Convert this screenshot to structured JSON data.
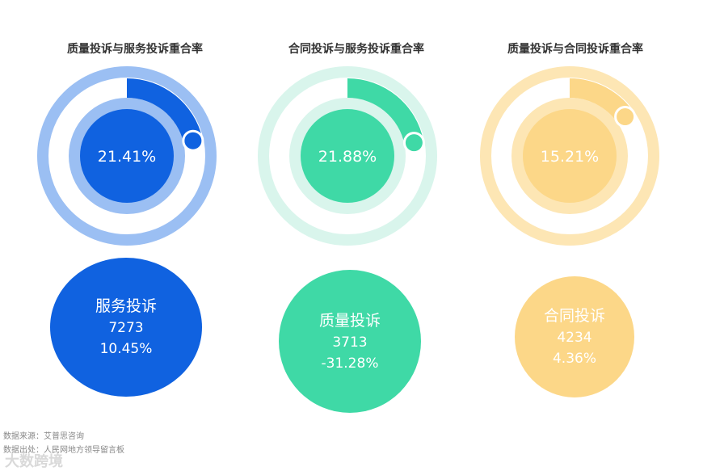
{
  "chart_data": [
    {
      "type": "pie",
      "title": "质量投诉与服务投诉重合率",
      "value_label": "21.41%",
      "value": 21.41,
      "colors": {
        "outer": "#9bbff3",
        "inner": "#9bbff3",
        "core": "#1062e0",
        "arc": "#1062e0",
        "dot": "#1062e0",
        "text": "#ffffff"
      }
    },
    {
      "type": "pie",
      "title": "合同投诉与服务投诉重合率",
      "value_label": "21.88%",
      "value": 21.88,
      "colors": {
        "outer": "#d9f5ec",
        "inner": "#d9f5ec",
        "core": "#3fd9a6",
        "arc": "#3fd9a6",
        "dot": "#3fd9a6",
        "text": "#ffffff"
      }
    },
    {
      "type": "pie",
      "title": "质量投诉与合同投诉重合率",
      "value_label": "15.21%",
      "value": 15.21,
      "colors": {
        "outer": "#fde6b4",
        "inner": "#fde6b4",
        "core": "#fcd788",
        "arc": "#fcd788",
        "dot": "#fcd788",
        "text": "#ffffff"
      }
    },
    {
      "type": "bubble",
      "categories": [
        "服务投诉",
        "质量投诉",
        "合同投诉"
      ],
      "values": [
        7273,
        3713,
        4234
      ],
      "labels": [
        "7273",
        "3713",
        "4234"
      ],
      "change_labels": [
        "10.45%",
        "-31.28%",
        "4.36%"
      ],
      "colors": [
        "#1062e0",
        "#3fd9a6",
        "#fcd788"
      ]
    }
  ],
  "footer": {
    "source": "数据来源：艾普思咨询",
    "origin": "数据出处：人民网地方领导留言板",
    "watermark": "大数跨境"
  }
}
